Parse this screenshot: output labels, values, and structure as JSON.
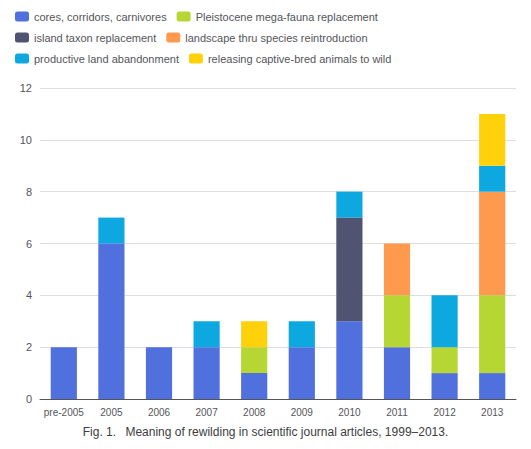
{
  "chart_data": {
    "type": "bar",
    "title": "Fig. 1.  Meaning of rewilding in scientific journal articles, 1999–2013.",
    "categories": [
      "pre-2005",
      "2005",
      "2006",
      "2007",
      "2008",
      "2009",
      "2010",
      "2011",
      "2012",
      "2013"
    ],
    "series": [
      {
        "name": "cores, corridors, carnivores",
        "values": [
          2,
          6,
          2,
          2,
          1,
          2,
          3,
          2,
          1,
          1
        ]
      },
      {
        "name": "Pleistocene mega-fauna replacement",
        "values": [
          0,
          0,
          0,
          0,
          1,
          0,
          0,
          2,
          1,
          3
        ]
      },
      {
        "name": "island taxon replacement",
        "values": [
          0,
          0,
          0,
          0,
          0,
          0,
          4,
          0,
          0,
          0
        ]
      },
      {
        "name": "landscape thru species reintroduction",
        "values": [
          0,
          0,
          0,
          0,
          0,
          0,
          0,
          2,
          0,
          4
        ]
      },
      {
        "name": "productive land abandonment",
        "values": [
          0,
          1,
          0,
          1,
          0,
          1,
          1,
          0,
          2,
          1
        ]
      },
      {
        "name": "releasing captive-bred animals to wild",
        "values": [
          0,
          0,
          0,
          0,
          1,
          0,
          0,
          0,
          0,
          2
        ]
      }
    ],
    "stacked": true,
    "ylim": [
      0,
      12
    ],
    "yticks": [
      0,
      2,
      4,
      6,
      8,
      10,
      12
    ],
    "grid": true,
    "legend": "upper left"
  }
}
